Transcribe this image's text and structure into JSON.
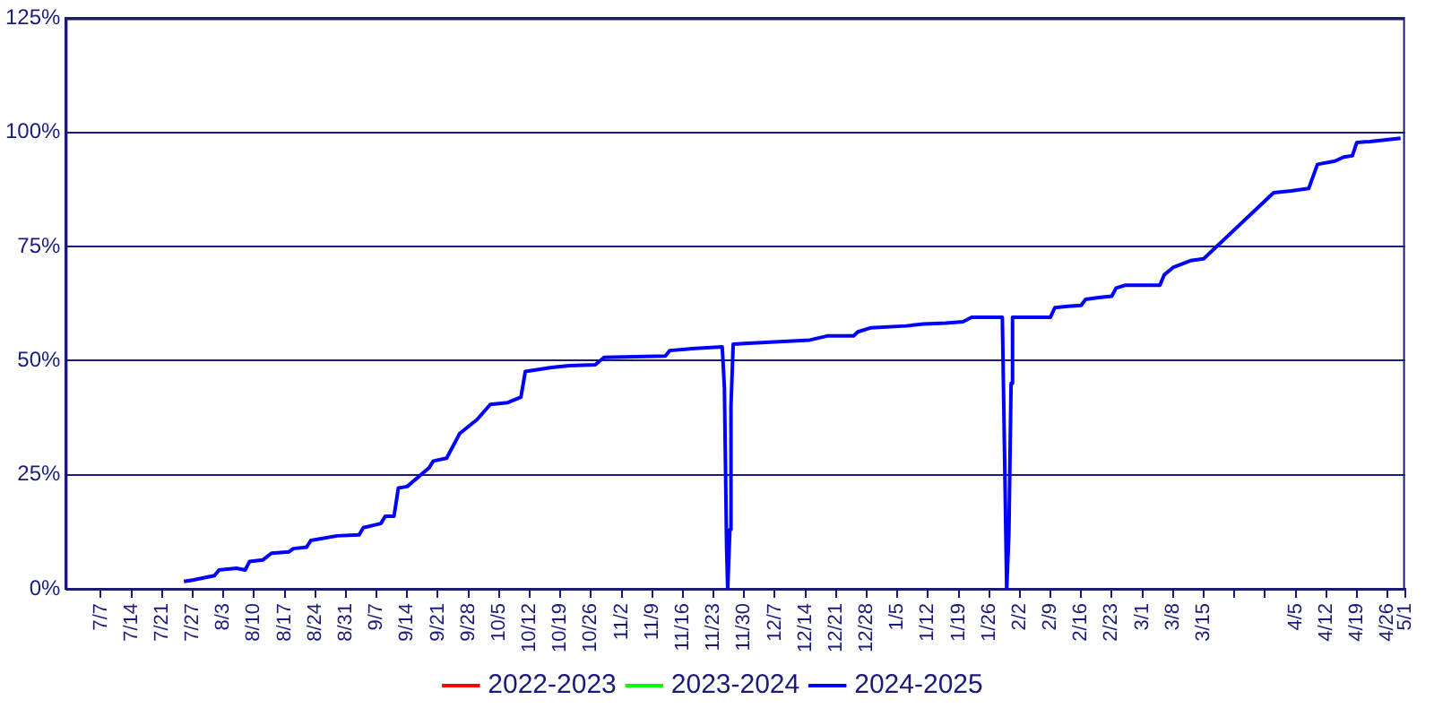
{
  "chart_data": {
    "type": "line",
    "x": [
      "2024-07-26",
      "2024-07-28",
      "2024-08-02",
      "2024-08-03",
      "2024-08-07",
      "2024-08-09",
      "2024-08-10",
      "2024-08-13",
      "2024-08-15",
      "2024-08-19",
      "2024-08-20",
      "2024-08-23",
      "2024-08-24",
      "2024-08-30",
      "2024-09-04",
      "2024-09-05",
      "2024-09-09",
      "2024-09-10",
      "2024-09-12",
      "2024-09-13",
      "2024-09-15",
      "2024-09-20",
      "2024-09-21",
      "2024-09-24",
      "2024-09-27",
      "2024-10-01",
      "2024-10-04",
      "2024-10-08",
      "2024-10-11",
      "2024-10-12",
      "2024-10-18",
      "2024-10-22",
      "2024-10-28",
      "2024-10-30",
      "2024-11-13",
      "2024-11-14",
      "2024-11-19",
      "2024-11-26",
      "2024-11-26T12:00",
      "2024-11-27",
      "2024-11-27T06:00",
      "2024-11-27T18:00",
      "2024-11-28",
      "2024-11-28T12:00",
      "2024-12-02",
      "2024-12-12",
      "2024-12-16",
      "2024-12-20",
      "2024-12-26",
      "2024-12-27",
      "2024-12-30",
      "2025-01-07",
      "2025-01-11",
      "2025-01-16",
      "2025-01-20",
      "2025-01-22",
      "2025-01-29",
      "2025-01-29T12:00",
      "2025-01-30",
      "2025-01-30T12:00",
      "2025-01-31",
      "2025-01-31T08:00",
      "2025-02-09",
      "2025-02-10",
      "2025-02-13",
      "2025-02-16",
      "2025-02-17",
      "2025-02-20",
      "2025-02-23",
      "2025-02-24",
      "2025-02-26",
      "2025-03-06",
      "2025-03-07",
      "2025-03-09",
      "2025-03-13",
      "2025-03-16",
      "2025-04-01",
      "2025-04-05",
      "2025-04-09",
      "2025-04-11",
      "2025-04-15",
      "2025-04-17",
      "2025-04-19",
      "2025-04-20",
      "2025-04-23",
      "2025-04-30"
    ],
    "series": [
      {
        "name": "2022-2023",
        "color": "#ff0000",
        "values": [
          null,
          null,
          null,
          null,
          null,
          null,
          null,
          null,
          null,
          null,
          null,
          null,
          null,
          null,
          null,
          null,
          null,
          null,
          null,
          null,
          null,
          null,
          null,
          null,
          null,
          null,
          null,
          null,
          null,
          null,
          null,
          null,
          null,
          null,
          null,
          null,
          null,
          null,
          null,
          null,
          null,
          null,
          null,
          null,
          null,
          null,
          null,
          null,
          null,
          null,
          null,
          null,
          null,
          null,
          null,
          null,
          null,
          null,
          null,
          null,
          null,
          null,
          null,
          null,
          null,
          null,
          null,
          null,
          null,
          null,
          null,
          null,
          null,
          null,
          null,
          null,
          null,
          null,
          null,
          null,
          null,
          null,
          null,
          null,
          null,
          null
        ]
      },
      {
        "name": "2023-2024",
        "color": "#00ff00",
        "values": [
          null,
          null,
          null,
          null,
          null,
          null,
          null,
          null,
          null,
          null,
          null,
          null,
          null,
          null,
          null,
          null,
          null,
          null,
          null,
          null,
          null,
          null,
          null,
          null,
          null,
          null,
          null,
          null,
          null,
          null,
          null,
          null,
          null,
          null,
          null,
          null,
          null,
          null,
          null,
          null,
          null,
          null,
          null,
          null,
          null,
          null,
          null,
          null,
          null,
          null,
          null,
          null,
          null,
          null,
          null,
          null,
          null,
          null,
          null,
          null,
          null,
          null,
          null,
          null,
          null,
          null,
          null,
          null,
          null,
          null,
          null,
          null,
          null,
          null,
          null,
          null,
          null,
          null,
          null,
          null,
          null,
          null,
          null,
          null,
          null,
          null
        ]
      },
      {
        "name": "2024-2025",
        "color": "#0000ff",
        "values": [
          1.6,
          1.9,
          2.9,
          4.1,
          4.5,
          4.1,
          6.0,
          6.3,
          7.8,
          8.1,
          8.8,
          9.1,
          10.6,
          11.6,
          11.8,
          13.4,
          14.3,
          15.9,
          15.9,
          22.1,
          22.4,
          26.5,
          28.0,
          28.6,
          34.0,
          37.1,
          40.4,
          40.8,
          42.0,
          47.6,
          48.5,
          48.9,
          49.1,
          50.7,
          51.0,
          52.2,
          52.6,
          53.0,
          44,
          9,
          0,
          13,
          40,
          53.6,
          53.8,
          54.3,
          54.5,
          55.4,
          55.4,
          56.3,
          57.2,
          57.6,
          58.0,
          58.2,
          58.5,
          59.5,
          59.5,
          30,
          0,
          12,
          45,
          59.5,
          59.5,
          61.6,
          61.9,
          62.1,
          63.4,
          63.8,
          64.1,
          65.9,
          66.5,
          66.5,
          68.8,
          70.4,
          71.9,
          72.3,
          86.8,
          87.2,
          87.7,
          93.0,
          93.7,
          94.6,
          94.9,
          97.8,
          98.0,
          98.7
        ]
      }
    ],
    "xlim": [
      "2024-06-29",
      "2025-05-01"
    ],
    "xticks": [
      {
        "value": "2024-07-07",
        "label": "7/7"
      },
      {
        "value": "2024-07-14",
        "label": "7/14"
      },
      {
        "value": "2024-07-21",
        "label": "7/21"
      },
      {
        "value": "2024-07-28",
        "label": "7/27"
      },
      {
        "value": "2024-08-04",
        "label": "8/3"
      },
      {
        "value": "2024-08-11",
        "label": "8/10"
      },
      {
        "value": "2024-08-18",
        "label": "8/17"
      },
      {
        "value": "2024-08-25",
        "label": "8/24"
      },
      {
        "value": "2024-09-01",
        "label": "8/31"
      },
      {
        "value": "2024-09-08",
        "label": "9/7"
      },
      {
        "value": "2024-09-15",
        "label": "9/14"
      },
      {
        "value": "2024-09-22",
        "label": "9/21"
      },
      {
        "value": "2024-09-29",
        "label": "9/28"
      },
      {
        "value": "2024-10-06",
        "label": "10/5"
      },
      {
        "value": "2024-10-13",
        "label": "10/12"
      },
      {
        "value": "2024-10-20",
        "label": "10/19"
      },
      {
        "value": "2024-10-27",
        "label": "10/26"
      },
      {
        "value": "2024-11-03",
        "label": "11/2"
      },
      {
        "value": "2024-11-10",
        "label": "11/9"
      },
      {
        "value": "2024-11-17",
        "label": "11/16"
      },
      {
        "value": "2024-11-24",
        "label": "11/23"
      },
      {
        "value": "2024-12-01",
        "label": "11/30"
      },
      {
        "value": "2024-12-08",
        "label": "12/7"
      },
      {
        "value": "2024-12-15",
        "label": "12/14"
      },
      {
        "value": "2024-12-22",
        "label": "12/21"
      },
      {
        "value": "2024-12-29",
        "label": "12/28"
      },
      {
        "value": "2025-01-05",
        "label": "1/5"
      },
      {
        "value": "2025-01-12",
        "label": "1/12"
      },
      {
        "value": "2025-01-19",
        "label": "1/19"
      },
      {
        "value": "2025-01-26",
        "label": "1/26"
      },
      {
        "value": "2025-02-02",
        "label": "2/2"
      },
      {
        "value": "2025-02-09",
        "label": "2/9"
      },
      {
        "value": "2025-02-16",
        "label": "2/16"
      },
      {
        "value": "2025-02-23",
        "label": "2/23"
      },
      {
        "value": "2025-03-02",
        "label": "3/1"
      },
      {
        "value": "2025-03-09",
        "label": "3/8"
      },
      {
        "value": "2025-03-16",
        "label": "3/15"
      },
      {
        "value": "2025-03-23",
        "label": null
      },
      {
        "value": "2025-03-30",
        "label": null
      },
      {
        "value": "2025-04-06",
        "label": "4/5"
      },
      {
        "value": "2025-04-13",
        "label": "4/12"
      },
      {
        "value": "2025-04-20",
        "label": "4/19"
      },
      {
        "value": "2025-04-27",
        "label": "4/26"
      },
      {
        "value": "2025-05-01",
        "label": "5/1"
      }
    ],
    "ylim": [
      0,
      125
    ],
    "yticks": [
      {
        "value": 0,
        "label": "0%"
      },
      {
        "value": 25,
        "label": "25%"
      },
      {
        "value": 50,
        "label": "50%"
      },
      {
        "value": 75,
        "label": "75%"
      },
      {
        "value": 100,
        "label": "100%"
      },
      {
        "value": 125,
        "label": "125%"
      }
    ],
    "grid": "y",
    "legend": "bottom",
    "marker": "none",
    "line_style": "solid"
  }
}
